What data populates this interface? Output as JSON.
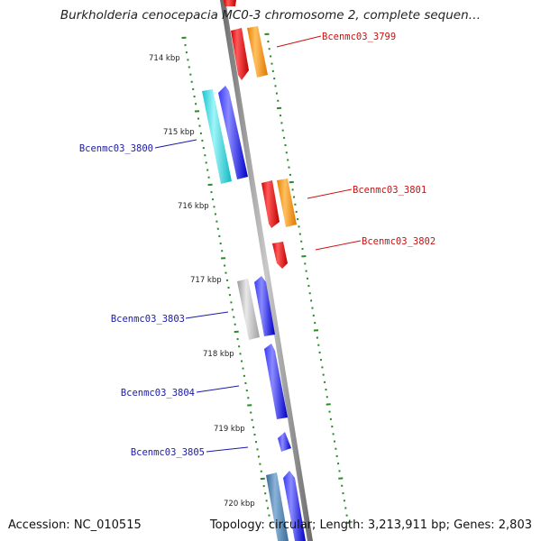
{
  "title": "Burkholderia cenocepacia MC0-3 chromosome 2, complete sequen…",
  "footer": {
    "accession": "Accession: NC_010515",
    "topology": "Topology: circular; Length: 3,213,911 bp; Genes: 2,803"
  },
  "colors": {
    "forward_gene": "#0000ee",
    "forward_label": "#1a1aa8",
    "reverse_gene": "#ee0000",
    "reverse_label": "#cc1010",
    "orange_feature": "#ff9a10",
    "cyan_feature": "#22d8e0",
    "gray_feature": "#b8b8b8",
    "steel_feature": "#4a7fb0",
    "backbone": "#8c8c8c",
    "tick": "#2a8a2a"
  },
  "scale_labels": [
    "714 kbp",
    "715 kbp",
    "716 kbp",
    "717 kbp",
    "718 kbp",
    "719 kbp",
    "720 kbp"
  ],
  "gene_labels": {
    "left": [
      "Bcenmc03_3800",
      "Bcenmc03_3803",
      "Bcenmc03_3804",
      "Bcenmc03_3805"
    ],
    "right": [
      "Bcenmc03_3799",
      "Bcenmc03_3801",
      "Bcenmc03_3802"
    ]
  }
}
